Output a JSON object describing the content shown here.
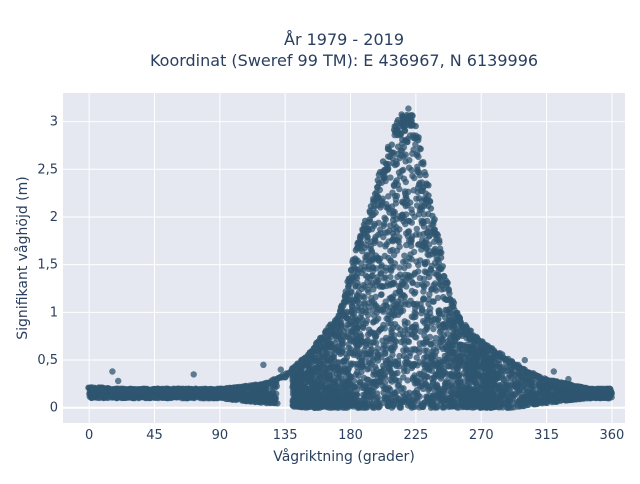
{
  "chart_data": {
    "type": "scatter",
    "title_lines": [
      "År 1979 - 2019",
      "Koordinat (Sweref 99 TM): E 436967, N 6139996"
    ],
    "xlabel": "Vågriktning (grader)",
    "ylabel": "Signifikant våghöjd (m)",
    "xlim": [
      -18,
      369
    ],
    "ylim": [
      -0.16,
      3.3
    ],
    "x_ticks": [
      0,
      45,
      90,
      135,
      180,
      225,
      270,
      315,
      360
    ],
    "x_tick_labels": [
      "0",
      "45",
      "90",
      "135",
      "180",
      "225",
      "270",
      "315",
      "360"
    ],
    "y_ticks": [
      0,
      0.5,
      1,
      1.5,
      2,
      2.5,
      3
    ],
    "y_tick_labels": [
      "0",
      "0,5",
      "1",
      "1,5",
      "2",
      "2,5",
      "3"
    ],
    "grid": true,
    "background_color": "#e5e8f0",
    "marker_color": "#2f5670",
    "envelope": {
      "x": [
        0,
        20,
        45,
        90,
        120,
        135,
        150,
        160,
        170,
        175,
        180,
        185,
        190,
        195,
        200,
        205,
        210,
        215,
        220,
        225,
        230,
        235,
        240,
        245,
        250,
        255,
        260,
        270,
        280,
        290,
        300,
        315,
        330,
        345,
        360
      ],
      "y_max": [
        0.22,
        0.2,
        0.2,
        0.2,
        0.25,
        0.35,
        0.55,
        0.75,
        0.95,
        1.15,
        1.45,
        1.75,
        1.95,
        2.15,
        2.5,
        2.75,
        2.95,
        3.1,
        3.15,
        3.05,
        2.7,
        2.2,
        1.85,
        1.4,
        1.15,
        0.95,
        0.85,
        0.7,
        0.6,
        0.5,
        0.4,
        0.3,
        0.25,
        0.2,
        0.2
      ],
      "y_min": [
        0.1,
        0.1,
        0.1,
        0.1,
        0.05,
        0.02,
        0.0,
        0.0,
        0.0,
        0.0,
        0.0,
        0.0,
        0.0,
        0.0,
        0.0,
        0.0,
        0.0,
        0.0,
        0.0,
        0.0,
        0.0,
        0.0,
        0.0,
        0.0,
        0.0,
        0.0,
        0.0,
        0.0,
        0.0,
        0.0,
        0.02,
        0.05,
        0.08,
        0.1,
        0.1
      ]
    },
    "outliers": [
      {
        "x": 16,
        "y": 0.38
      },
      {
        "x": 20,
        "y": 0.28
      },
      {
        "x": 72,
        "y": 0.35
      },
      {
        "x": 120,
        "y": 0.45
      },
      {
        "x": 132,
        "y": 0.4
      },
      {
        "x": 265,
        "y": 0.7
      },
      {
        "x": 300,
        "y": 0.5
      },
      {
        "x": 320,
        "y": 0.38
      },
      {
        "x": 330,
        "y": 0.3
      }
    ]
  }
}
